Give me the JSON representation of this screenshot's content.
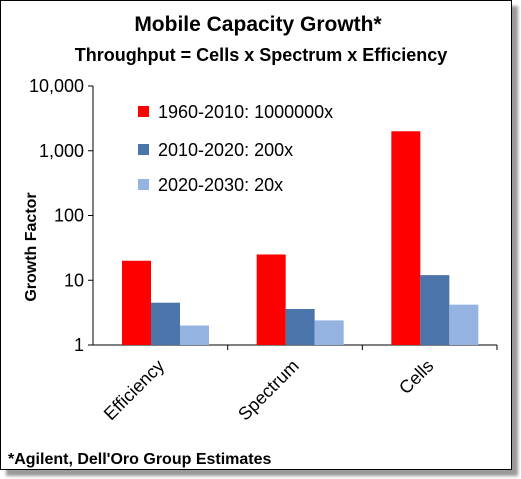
{
  "chart_data": {
    "type": "bar",
    "title": "Mobile Capacity Growth*",
    "subtitle": "Throughput = Cells x Spectrum x Efficiency",
    "ylabel": "Growth Factor",
    "xlabel": "",
    "yscale": "log",
    "ylim": [
      1,
      10000
    ],
    "yticks": [
      "1",
      "10",
      "100",
      "1,000",
      "10,000"
    ],
    "categories": [
      "Efficiency",
      "Spectrum",
      "Cells"
    ],
    "series": [
      {
        "name": "1960-2010: 1000000x",
        "color": "#ff0000",
        "values": [
          20,
          25,
          2000
        ]
      },
      {
        "name": "2010-2020: 200x",
        "color": "#4a74aa",
        "values": [
          4.5,
          3.6,
          12
        ]
      },
      {
        "name": "2020-2030: 20x",
        "color": "#95b3e0",
        "values": [
          2,
          2.4,
          4.2
        ]
      }
    ],
    "grid": false,
    "legend_position": "top-left",
    "footnote": "*Agilent, Dell'Oro Group Estimates"
  }
}
